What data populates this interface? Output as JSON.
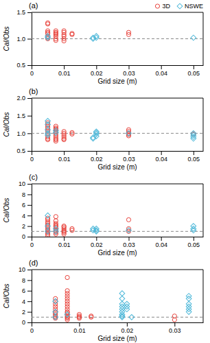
{
  "chart_data": [
    {
      "type": "scatter",
      "title": "(a)",
      "xlabel": "Grid size (m)",
      "ylabel": "Cal/Obs",
      "xlim": [
        0,
        0.053
      ],
      "xticks": [
        0,
        0.01,
        0.02,
        0.03,
        0.04,
        0.05
      ],
      "ylim": [
        0.5,
        1.5
      ],
      "yticks": [
        0.5,
        {
          "value": 1.0,
          "label": "1.0"
        },
        1.5
      ],
      "legend": "upper right",
      "hline": {
        "y": 1.0,
        "color": "#888888",
        "line_style": "dashed"
      },
      "series": [
        {
          "name": "3D",
          "color": "#e8413a",
          "marker": "circle",
          "x": [
            0.005,
            0.005,
            0.005,
            0.005,
            0.005,
            0.005,
            0.005,
            0.005,
            0.0075,
            0.0075,
            0.0075,
            0.0075,
            0.0075,
            0.0075,
            0.0075,
            0.01,
            0.01,
            0.01,
            0.01,
            0.01,
            0.01,
            0.0125,
            0.0125,
            0.03,
            0.03
          ],
          "values": [
            1.05,
            1.1,
            1.0,
            1.02,
            1.3,
            1.28,
            1.15,
            1.12,
            1.15,
            1.12,
            1.1,
            1.05,
            1.0,
            0.97,
            1.08,
            1.15,
            1.12,
            1.08,
            1.05,
            1.0,
            0.96,
            1.1,
            1.08,
            1.12,
            1.08
          ]
        },
        {
          "name": "NSWE",
          "color": "#4eb8d9",
          "marker": "diamond",
          "x": [
            0.005,
            0.005,
            0.019,
            0.019,
            0.02,
            0.02,
            0.05
          ],
          "values": [
            1.05,
            1.02,
            1.02,
            1.0,
            1.05,
            1.02,
            1.02
          ]
        }
      ]
    },
    {
      "type": "scatter",
      "title": "(b)",
      "xlabel": "Grid size (m)",
      "ylabel": "Cal/Obs",
      "xlim": [
        0,
        0.053
      ],
      "xticks": [
        0,
        0.01,
        0.02,
        0.03,
        0.04,
        0.05
      ],
      "ylim": [
        0.5,
        2.0
      ],
      "yticks": [
        0.5,
        {
          "value": 1.0,
          "label": "1.0"
        },
        1.5,
        {
          "value": 2.0,
          "label": "2.0"
        }
      ],
      "hline": {
        "y": 1.0,
        "color": "#888888",
        "line_style": "dashed"
      },
      "series": [
        {
          "color": "#e8413a",
          "marker": "circle",
          "x": [
            0.005,
            0.005,
            0.005,
            0.005,
            0.005,
            0.005,
            0.005,
            0.005,
            0.005,
            0.005,
            0.005,
            0.0075,
            0.0075,
            0.0075,
            0.0075,
            0.0075,
            0.0075,
            0.0075,
            0.0075,
            0.0075,
            0.0075,
            0.0075,
            0.01,
            0.01,
            0.01,
            0.01,
            0.01,
            0.01,
            0.0125,
            0.0125,
            0.03,
            0.03,
            0.03,
            0.03,
            0.03,
            0.05
          ],
          "values": [
            1.3,
            1.25,
            1.2,
            1.15,
            1.1,
            1.05,
            1.0,
            0.95,
            0.9,
            0.85,
            0.82,
            1.2,
            1.15,
            1.12,
            1.08,
            1.05,
            1.0,
            0.95,
            0.9,
            0.85,
            0.82,
            0.78,
            1.05,
            1.0,
            0.95,
            0.9,
            0.85,
            0.82,
            1.02,
            0.98,
            1.1,
            1.05,
            1.0,
            0.97,
            0.93,
            0.98
          ]
        },
        {
          "color": "#4eb8d9",
          "marker": "diamond",
          "x": [
            0.005,
            0.005,
            0.005,
            0.005,
            0.005,
            0.0075,
            0.0075,
            0.019,
            0.019,
            0.02,
            0.02,
            0.02,
            0.02,
            0.03,
            0.05,
            0.05,
            0.05,
            0.05
          ],
          "values": [
            1.35,
            1.25,
            1.1,
            1.0,
            0.95,
            1.08,
            1.02,
            0.88,
            0.85,
            1.05,
            1.02,
            0.98,
            0.92,
            1.0,
            1.0,
            0.95,
            0.9,
            0.85
          ]
        }
      ]
    },
    {
      "type": "scatter",
      "title": "(c)",
      "xlabel": "Grid size (m)",
      "ylabel": "Cal/Obs",
      "xlim": [
        0,
        0.053
      ],
      "xticks": [
        0,
        0.01,
        0.02,
        0.03,
        0.04,
        0.05
      ],
      "ylim": [
        0,
        10
      ],
      "yticks": [
        0,
        2,
        4,
        6,
        8,
        10
      ],
      "hline": {
        "y": 1.0,
        "color": "#888888",
        "line_style": "dashed"
      },
      "series": [
        {
          "color": "#e8413a",
          "marker": "circle",
          "x": [
            0.005,
            0.005,
            0.005,
            0.005,
            0.005,
            0.005,
            0.005,
            0.005,
            0.005,
            0.005,
            0.005,
            0.005,
            0.005,
            0.0075,
            0.0075,
            0.0075,
            0.0075,
            0.0075,
            0.0075,
            0.0075,
            0.0075,
            0.0075,
            0.0075,
            0.0075,
            0.01,
            0.01,
            0.01,
            0.01,
            0.01,
            0.01,
            0.01,
            0.0125,
            0.0125,
            0.03,
            0.03,
            0.03
          ],
          "values": [
            3.5,
            3.2,
            2.8,
            2.5,
            2.2,
            2.0,
            1.8,
            1.5,
            1.2,
            1.0,
            0.8,
            0.5,
            0.2,
            3.8,
            3.0,
            2.5,
            2.2,
            2.0,
            1.8,
            1.5,
            1.2,
            1.0,
            0.8,
            0.5,
            2.0,
            1.8,
            1.5,
            1.2,
            1.0,
            0.8,
            0.5,
            1.5,
            1.2,
            3.2,
            1.5,
            1.0
          ]
        },
        {
          "color": "#4eb8d9",
          "marker": "diamond",
          "x": [
            0.005,
            0.005,
            0.005,
            0.0075,
            0.0075,
            0.019,
            0.019,
            0.02,
            0.02,
            0.02,
            0.03,
            0.05,
            0.05,
            0.05
          ],
          "values": [
            4.0,
            2.0,
            1.0,
            1.5,
            1.0,
            1.5,
            1.2,
            1.5,
            1.2,
            1.0,
            1.2,
            2.0,
            1.5,
            1.2
          ]
        }
      ]
    },
    {
      "type": "scatter",
      "title": "(d)",
      "xlabel": "Grid size (m)",
      "ylabel": "Cal/Obs",
      "xlim": [
        0,
        0.036
      ],
      "xticks": [
        0,
        0.01,
        0.02,
        0.03
      ],
      "ylim": [
        0,
        10
      ],
      "yticks": [
        0,
        2,
        4,
        6,
        8,
        10
      ],
      "hline": {
        "y": 1.0,
        "color": "#888888",
        "line_style": "dashed"
      },
      "series": [
        {
          "color": "#e8413a",
          "marker": "circle",
          "x": [
            0.005,
            0.005,
            0.005,
            0.005,
            0.005,
            0.005,
            0.005,
            0.005,
            0.005,
            0.005,
            0.005,
            0.0075,
            0.0075,
            0.0075,
            0.0075,
            0.0075,
            0.0075,
            0.0075,
            0.0075,
            0.0075,
            0.0075,
            0.0075,
            0.0075,
            0.0075,
            0.0075,
            0.0075,
            0.0075,
            0.01,
            0.01,
            0.01,
            0.01,
            0.0125,
            0.0125,
            0.03,
            0.03
          ],
          "values": [
            4.5,
            4.0,
            3.5,
            3.0,
            2.5,
            2.0,
            1.8,
            1.5,
            1.2,
            1.0,
            0.8,
            8.5,
            6.0,
            5.5,
            5.0,
            4.5,
            4.0,
            3.5,
            3.0,
            2.5,
            2.0,
            1.8,
            1.5,
            1.2,
            1.0,
            0.8,
            0.5,
            1.5,
            1.2,
            1.0,
            0.8,
            1.2,
            1.0,
            1.2,
            0.5
          ]
        },
        {
          "color": "#4eb8d9",
          "marker": "diamond",
          "x": [
            0.005,
            0.005,
            0.005,
            0.0075,
            0.019,
            0.019,
            0.019,
            0.019,
            0.019,
            0.019,
            0.019,
            0.019,
            0.019,
            0.02,
            0.02,
            0.02,
            0.021,
            0.033,
            0.033,
            0.033,
            0.033,
            0.033,
            0.033
          ],
          "values": [
            4.0,
            2.0,
            1.0,
            1.5,
            5.5,
            4.5,
            3.5,
            3.0,
            2.5,
            2.0,
            1.5,
            1.2,
            1.0,
            3.5,
            3.0,
            2.5,
            1.0,
            5.0,
            4.5,
            3.5,
            3.0,
            2.5,
            2.0
          ]
        }
      ]
    }
  ]
}
